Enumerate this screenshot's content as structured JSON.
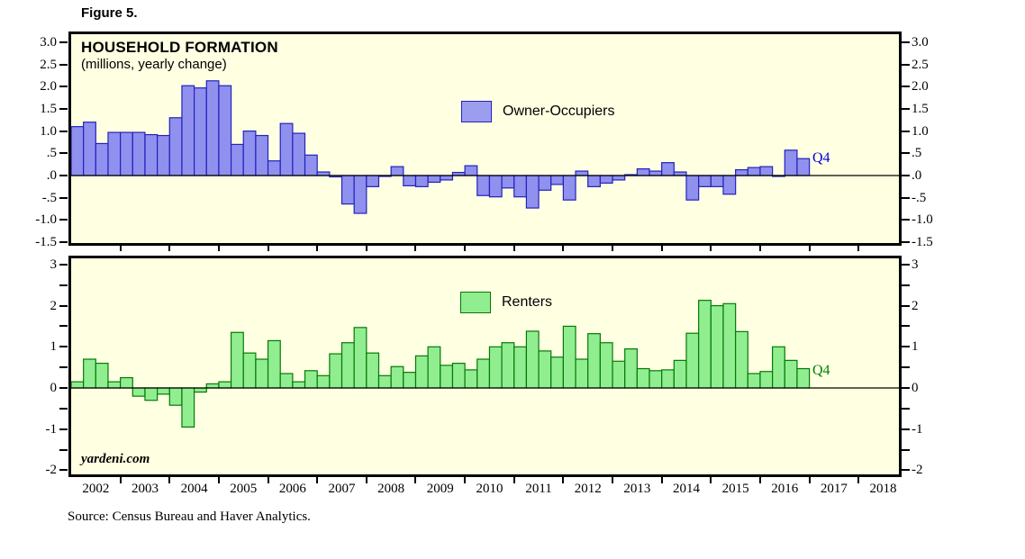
{
  "figure_label": "Figure 5.",
  "title": "HOUSEHOLD FORMATION",
  "subtitle": "(millions, yearly change)",
  "watermark": "yardeni.com",
  "source_note": "Source: Census Bureau and Haver Analytics.",
  "colors": {
    "plot_background": "#ffffe2",
    "owner_fill": "#9090ee",
    "owner_border": "#2222bb",
    "owner_annotation": "#0000dd",
    "renter_fill": "#90ee90",
    "renter_border": "#067806",
    "renter_annotation": "#008000",
    "axis": "#000000"
  },
  "x_axis": {
    "years": [
      "2002",
      "2003",
      "2004",
      "2005",
      "2006",
      "2007",
      "2008",
      "2009",
      "2010",
      "2011",
      "2012",
      "2013",
      "2014",
      "2015",
      "2016",
      "2017",
      "2018"
    ],
    "frequency": "quarterly",
    "data_start": "2002-Q1",
    "data_end": "2016-Q4"
  },
  "chart_data": [
    {
      "type": "bar",
      "title": "HOUSEHOLD FORMATION",
      "subtitle": "(millions, yearly change)",
      "legend": "Owner-Occupiers",
      "annotation": "Q4",
      "ylim": [
        -1.5,
        3.0
      ],
      "grid": false,
      "y_ticks": [
        {
          "v": 3.0,
          "label": "3.0"
        },
        {
          "v": 2.5,
          "label": "2.5"
        },
        {
          "v": 2.0,
          "label": "2.0"
        },
        {
          "v": 1.5,
          "label": "1.5"
        },
        {
          "v": 1.0,
          "label": "1.0"
        },
        {
          "v": 0.5,
          "label": ".5"
        },
        {
          "v": 0.0,
          "label": ".0"
        },
        {
          "v": -0.5,
          "label": "-.5"
        },
        {
          "v": -1.0,
          "label": "-1.0"
        },
        {
          "v": -1.5,
          "label": "-1.5"
        }
      ],
      "minor_tick_values": [
        3,
        2.5,
        2,
        1.5,
        1,
        0.5,
        0,
        -0.5,
        -1,
        -1.5
      ],
      "x_quarters_start": "2002-Q1",
      "values": [
        1.1,
        1.2,
        0.72,
        0.97,
        0.97,
        0.97,
        0.92,
        0.9,
        1.3,
        2.02,
        1.97,
        2.13,
        2.02,
        0.7,
        1.0,
        0.9,
        0.33,
        1.17,
        0.95,
        0.46,
        0.08,
        -0.03,
        -0.64,
        -0.85,
        -0.25,
        -0.02,
        0.2,
        -0.23,
        -0.25,
        -0.15,
        -0.1,
        0.07,
        0.22,
        -0.45,
        -0.48,
        -0.28,
        -0.48,
        -0.73,
        -0.33,
        -0.2,
        -0.55,
        0.1,
        -0.25,
        -0.17,
        -0.1,
        0.02,
        0.15,
        0.1,
        0.29,
        0.08,
        -0.55,
        -0.25,
        -0.25,
        -0.42,
        0.13,
        0.18,
        0.2,
        -0.02,
        0.57,
        0.38
      ]
    },
    {
      "type": "bar",
      "legend": "Renters",
      "annotation": "Q4",
      "ylim": [
        -2,
        3
      ],
      "grid": false,
      "y_ticks": [
        {
          "v": 3,
          "label": "3"
        },
        {
          "v": 2,
          "label": "2"
        },
        {
          "v": 1,
          "label": "1"
        },
        {
          "v": 0,
          "label": "0"
        },
        {
          "v": -1,
          "label": "-1"
        },
        {
          "v": -2,
          "label": "-2"
        }
      ],
      "minor_tick_values": [
        3,
        2.5,
        2,
        1.5,
        1,
        0.5,
        0,
        -0.5,
        -1,
        -1.5,
        -2
      ],
      "x_quarters_start": "2002-Q1",
      "values": [
        0.15,
        0.7,
        0.6,
        0.15,
        0.25,
        -0.2,
        -0.3,
        -0.15,
        -0.42,
        -0.95,
        -0.1,
        0.1,
        0.15,
        1.35,
        0.85,
        0.7,
        1.15,
        0.35,
        0.15,
        0.42,
        0.3,
        0.83,
        1.1,
        1.47,
        0.85,
        0.3,
        0.52,
        0.38,
        0.78,
        1.0,
        0.55,
        0.6,
        0.44,
        0.7,
        1.0,
        1.1,
        1.0,
        1.38,
        0.9,
        0.75,
        1.5,
        0.7,
        1.32,
        1.1,
        0.65,
        0.95,
        0.47,
        0.42,
        0.44,
        0.67,
        1.33,
        2.13,
        2.0,
        2.05,
        1.37,
        0.35,
        0.4,
        1.0,
        0.67,
        0.47
      ]
    }
  ]
}
